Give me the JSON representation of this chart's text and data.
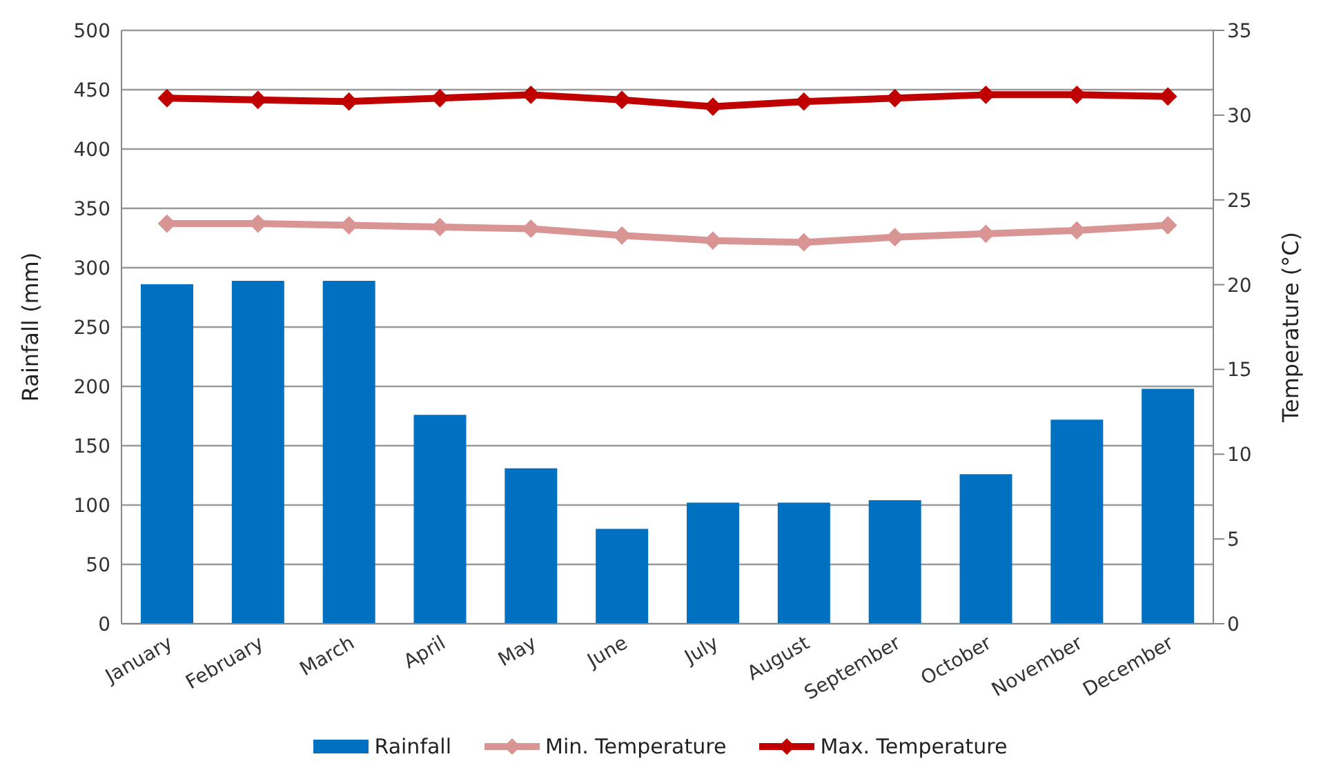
{
  "chart_data": {
    "type": "bar",
    "categories": [
      "January",
      "February",
      "March",
      "April",
      "May",
      "June",
      "July",
      "August",
      "September",
      "October",
      "November",
      "December"
    ],
    "series": [
      {
        "name": "Rainfall",
        "color": "#0070c0",
        "values": [
          286,
          289,
          289,
          176,
          131,
          80,
          102,
          102,
          104,
          126,
          172,
          198
        ]
      },
      {
        "name": "Min. Temperature",
        "type": "line",
        "axis": "y2",
        "color": "#d99594",
        "values": [
          23.6,
          23.6,
          23.5,
          23.4,
          23.3,
          22.9,
          22.6,
          22.5,
          22.8,
          23.0,
          23.2,
          23.5
        ]
      },
      {
        "name": "Max. Temperature",
        "type": "line",
        "axis": "y2",
        "color": "#c00000",
        "values": [
          31.0,
          30.9,
          30.8,
          31.0,
          31.2,
          30.9,
          30.5,
          30.8,
          31.0,
          31.2,
          31.2,
          31.1
        ]
      }
    ],
    "ylabel": "Rainfall (mm)",
    "y2label": "Temperature (°C)",
    "ylim": [
      0,
      500
    ],
    "yticks": [
      0,
      50,
      100,
      150,
      200,
      250,
      300,
      350,
      400,
      450,
      500
    ],
    "y2lim": [
      0,
      35
    ],
    "y2ticks": [
      0,
      5,
      10,
      15,
      20,
      25,
      30,
      35
    ],
    "grid": "y",
    "legend": "bottom",
    "marker": "diamond"
  }
}
